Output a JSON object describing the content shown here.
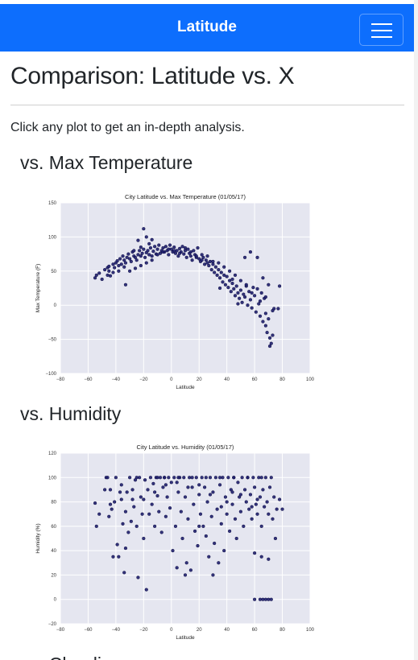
{
  "navbar": {
    "brand": "Latitude",
    "menu_icon": "hamburger-icon",
    "color": "#0d6efd"
  },
  "page": {
    "title": "Comparison: Latitude vs. X",
    "intro": "Click any plot to get an in-depth analysis.",
    "sections": [
      {
        "heading": "vs. Max Temperature"
      },
      {
        "heading": "vs. Humidity"
      },
      {
        "heading": "vs. Cloudiness"
      }
    ]
  },
  "chart_data": [
    {
      "type": "scatter",
      "title": "City Latitude vs. Max Temperature (01/05/17)",
      "xlabel": "Latitude",
      "ylabel": "Max Temperature (F)",
      "xlim": [
        -80,
        100
      ],
      "ylim": [
        -100,
        150
      ],
      "xticks": [
        -80,
        -60,
        -40,
        -20,
        0,
        20,
        40,
        60,
        80,
        100
      ],
      "yticks": [
        -100,
        -50,
        0,
        50,
        100,
        150
      ],
      "background": "#e5e6f0",
      "marker_color": "#1f1f6e",
      "grid": true,
      "points": [
        [
          -55,
          40
        ],
        [
          -54,
          44
        ],
        [
          -52,
          47
        ],
        [
          -48,
          52
        ],
        [
          -46,
          55
        ],
        [
          -45,
          57
        ],
        [
          -45,
          50
        ],
        [
          -44,
          43
        ],
        [
          -42,
          60
        ],
        [
          -41,
          55
        ],
        [
          -40,
          62
        ],
        [
          -39,
          65
        ],
        [
          -38,
          58
        ],
        [
          -37,
          68
        ],
        [
          -36,
          60
        ],
        [
          -35,
          72
        ],
        [
          -34,
          66
        ],
        [
          -33,
          62
        ],
        [
          -33,
          30
        ],
        [
          -32,
          70
        ],
        [
          -31,
          75
        ],
        [
          -30,
          68
        ],
        [
          -29,
          64
        ],
        [
          -28,
          78
        ],
        [
          -27,
          72
        ],
        [
          -27,
          80
        ],
        [
          -26,
          70
        ],
        [
          -25,
          66
        ],
        [
          -24,
          74
        ],
        [
          -24,
          95
        ],
        [
          -23,
          80
        ],
        [
          -22,
          72
        ],
        [
          -22,
          85
        ],
        [
          -21,
          76
        ],
        [
          -20,
          82
        ],
        [
          -20,
          112
        ],
        [
          -19,
          70
        ],
        [
          -18,
          77
        ],
        [
          -18,
          100
        ],
        [
          -17,
          80
        ],
        [
          -16,
          74
        ],
        [
          -16,
          90
        ],
        [
          -15,
          84
        ],
        [
          -14,
          72
        ],
        [
          -14,
          96
        ],
        [
          -13,
          79
        ],
        [
          -12,
          86
        ],
        [
          -11,
          75
        ],
        [
          -10,
          82
        ],
        [
          -9,
          88
        ],
        [
          -8,
          76
        ],
        [
          -7,
          80
        ],
        [
          -6,
          84
        ],
        [
          -5,
          78
        ],
        [
          -4,
          86
        ],
        [
          -3,
          80
        ],
        [
          -2,
          74
        ],
        [
          -1,
          88
        ],
        [
          0,
          82
        ],
        [
          1,
          78
        ],
        [
          2,
          85
        ],
        [
          3,
          76
        ],
        [
          4,
          80
        ],
        [
          5,
          72
        ],
        [
          6,
          83
        ],
        [
          7,
          78
        ],
        [
          8,
          86
        ],
        [
          9,
          75
        ],
        [
          10,
          80
        ],
        [
          11,
          70
        ],
        [
          12,
          82
        ],
        [
          13,
          76
        ],
        [
          14,
          72
        ],
        [
          15,
          66
        ],
        [
          16,
          80
        ],
        [
          17,
          74
        ],
        [
          18,
          70
        ],
        [
          19,
          84
        ],
        [
          20,
          68
        ],
        [
          21,
          64
        ],
        [
          22,
          74
        ],
        [
          23,
          70
        ],
        [
          24,
          60
        ],
        [
          25,
          66
        ],
        [
          26,
          72
        ],
        [
          27,
          58
        ],
        [
          28,
          64
        ],
        [
          29,
          52
        ],
        [
          30,
          60
        ],
        [
          31,
          48
        ],
        [
          32,
          56
        ],
        [
          33,
          44
        ],
        [
          34,
          52
        ],
        [
          35,
          40
        ],
        [
          36,
          48
        ],
        [
          37,
          34
        ],
        [
          38,
          44
        ],
        [
          39,
          30
        ],
        [
          40,
          42
        ],
        [
          41,
          26
        ],
        [
          42,
          36
        ],
        [
          43,
          20
        ],
        [
          44,
          32
        ],
        [
          45,
          24
        ],
        [
          46,
          14
        ],
        [
          47,
          28
        ],
        [
          48,
          18
        ],
        [
          49,
          10
        ],
        [
          50,
          22
        ],
        [
          51,
          4
        ],
        [
          52,
          16
        ],
        [
          53,
          12
        ],
        [
          54,
          28
        ],
        [
          55,
          0
        ],
        [
          56,
          20
        ],
        [
          57,
          8
        ],
        [
          58,
          -4
        ],
        [
          59,
          26
        ],
        [
          60,
          14
        ],
        [
          61,
          -10
        ],
        [
          62,
          24
        ],
        [
          63,
          2
        ],
        [
          64,
          -16
        ],
        [
          65,
          18
        ],
        [
          66,
          -24
        ],
        [
          67,
          10
        ],
        [
          68,
          -30
        ],
        [
          69,
          -40
        ],
        [
          70,
          -20
        ],
        [
          71,
          -48
        ],
        [
          72,
          -56
        ],
        [
          73,
          -8
        ],
        [
          68,
          -12
        ],
        [
          64,
          6
        ],
        [
          58,
          18
        ],
        [
          54,
          30
        ],
        [
          50,
          36
        ],
        [
          46,
          44
        ],
        [
          42,
          50
        ],
        [
          38,
          56
        ],
        [
          34,
          62
        ],
        [
          30,
          64
        ],
        [
          26,
          62
        ],
        [
          22,
          66
        ],
        [
          18,
          72
        ],
        [
          14,
          78
        ],
        [
          10,
          84
        ],
        [
          6,
          76
        ],
        [
          2,
          80
        ],
        [
          -2,
          82
        ],
        [
          -6,
          78
        ],
        [
          -10,
          74
        ],
        [
          -14,
          66
        ],
        [
          -18,
          62
        ],
        [
          -22,
          58
        ],
        [
          -26,
          54
        ],
        [
          -30,
          50
        ],
        [
          -34,
          56
        ],
        [
          -38,
          50
        ],
        [
          -42,
          48
        ],
        [
          -46,
          44
        ],
        [
          -50,
          38
        ],
        [
          53,
          70
        ],
        [
          57,
          78
        ],
        [
          62,
          70
        ],
        [
          70,
          30
        ],
        [
          74,
          -5
        ],
        [
          78,
          28
        ],
        [
          77,
          -5
        ],
        [
          35,
          25
        ],
        [
          48,
          2
        ],
        [
          44,
          38
        ],
        [
          66,
          40
        ],
        [
          68,
          12
        ],
        [
          71,
          -60
        ],
        [
          73,
          -44
        ]
      ]
    },
    {
      "type": "scatter",
      "title": "City Latitude vs. Humidity (01/05/17)",
      "xlabel": "Latitude",
      "ylabel": "Humidity (%)",
      "xlim": [
        -80,
        100
      ],
      "ylim": [
        -20,
        120
      ],
      "xticks": [
        -80,
        -60,
        -40,
        -20,
        0,
        20,
        40,
        60,
        80,
        100
      ],
      "yticks": [
        -20,
        0,
        20,
        40,
        60,
        80,
        100,
        120
      ],
      "background": "#e5e6f0",
      "marker_color": "#1f1f6e",
      "grid": true,
      "points": [
        [
          -55,
          79
        ],
        [
          -54,
          60
        ],
        [
          -52,
          70
        ],
        [
          -48,
          90
        ],
        [
          -47,
          100
        ],
        [
          -46,
          100
        ],
        [
          -45,
          68
        ],
        [
          -44,
          90
        ],
        [
          -43,
          74
        ],
        [
          -42,
          35
        ],
        [
          -41,
          80
        ],
        [
          -40,
          100
        ],
        [
          -39,
          45
        ],
        [
          -38,
          35
        ],
        [
          -37,
          88
        ],
        [
          -36,
          94
        ],
        [
          -35,
          62
        ],
        [
          -34,
          22
        ],
        [
          -33,
          42
        ],
        [
          -33,
          72
        ],
        [
          -32,
          88
        ],
        [
          -31,
          55
        ],
        [
          -30,
          100
        ],
        [
          -29,
          64
        ],
        [
          -28,
          82
        ],
        [
          -27,
          76
        ],
        [
          -26,
          98
        ],
        [
          -25,
          60
        ],
        [
          -24,
          18
        ],
        [
          -23,
          100
        ],
        [
          -22,
          84
        ],
        [
          -21,
          70
        ],
        [
          -20,
          50
        ],
        [
          -19,
          98
        ],
        [
          -18,
          8
        ],
        [
          -17,
          90
        ],
        [
          -16,
          70
        ],
        [
          -15,
          100
        ],
        [
          -14,
          78
        ],
        [
          -13,
          95
        ],
        [
          -12,
          60
        ],
        [
          -11,
          100
        ],
        [
          -10,
          85
        ],
        [
          -9,
          72
        ],
        [
          -8,
          100
        ],
        [
          -7,
          55
        ],
        [
          -6,
          92
        ],
        [
          -5,
          100
        ],
        [
          -4,
          68
        ],
        [
          -3,
          84
        ],
        [
          -2,
          100
        ],
        [
          -1,
          75
        ],
        [
          0,
          96
        ],
        [
          1,
          40
        ],
        [
          2,
          100
        ],
        [
          3,
          60
        ],
        [
          4,
          26
        ],
        [
          5,
          88
        ],
        [
          6,
          100
        ],
        [
          7,
          72
        ],
        [
          8,
          50
        ],
        [
          9,
          100
        ],
        [
          10,
          84
        ],
        [
          11,
          30
        ],
        [
          12,
          66
        ],
        [
          13,
          100
        ],
        [
          14,
          24
        ],
        [
          15,
          92
        ],
        [
          16,
          78
        ],
        [
          17,
          56
        ],
        [
          18,
          100
        ],
        [
          19,
          44
        ],
        [
          20,
          86
        ],
        [
          21,
          70
        ],
        [
          22,
          100
        ],
        [
          23,
          60
        ],
        [
          24,
          92
        ],
        [
          25,
          52
        ],
        [
          26,
          80
        ],
        [
          27,
          35
        ],
        [
          28,
          100
        ],
        [
          29,
          68
        ],
        [
          30,
          88
        ],
        [
          31,
          46
        ],
        [
          32,
          100
        ],
        [
          33,
          74
        ],
        [
          34,
          30
        ],
        [
          35,
          94
        ],
        [
          36,
          62
        ],
        [
          37,
          100
        ],
        [
          38,
          40
        ],
        [
          39,
          84
        ],
        [
          40,
          70
        ],
        [
          41,
          100
        ],
        [
          42,
          56
        ],
        [
          43,
          90
        ],
        [
          44,
          78
        ],
        [
          45,
          100
        ],
        [
          46,
          66
        ],
        [
          47,
          50
        ],
        [
          48,
          96
        ],
        [
          49,
          84
        ],
        [
          50,
          72
        ],
        [
          51,
          100
        ],
        [
          52,
          60
        ],
        [
          53,
          90
        ],
        [
          54,
          80
        ],
        [
          55,
          100
        ],
        [
          56,
          74
        ],
        [
          57,
          86
        ],
        [
          58,
          66
        ],
        [
          59,
          100
        ],
        [
          60,
          92
        ],
        [
          61,
          78
        ],
        [
          62,
          70
        ],
        [
          63,
          100
        ],
        [
          64,
          84
        ],
        [
          65,
          60
        ],
        [
          66,
          90
        ],
        [
          67,
          76
        ],
        [
          68,
          100
        ],
        [
          69,
          80
        ],
        [
          70,
          70
        ],
        [
          71,
          92
        ],
        [
          72,
          100
        ],
        [
          73,
          66
        ],
        [
          74,
          84
        ],
        [
          75,
          50
        ],
        [
          60,
          0
        ],
        [
          64,
          0
        ],
        [
          66,
          0
        ],
        [
          68,
          0
        ],
        [
          70,
          0
        ],
        [
          72,
          0
        ],
        [
          60,
          38
        ],
        [
          65,
          35
        ],
        [
          70,
          33
        ],
        [
          -10,
          100
        ],
        [
          -25,
          100
        ],
        [
          -5,
          100
        ],
        [
          5,
          100
        ],
        [
          15,
          100
        ],
        [
          25,
          100
        ],
        [
          35,
          100
        ],
        [
          45,
          100
        ],
        [
          55,
          100
        ],
        [
          65,
          100
        ],
        [
          20,
          60
        ],
        [
          30,
          20
        ],
        [
          10,
          20
        ],
        [
          40,
          80
        ],
        [
          50,
          86
        ],
        [
          58,
          76
        ],
        [
          62,
          82
        ],
        [
          44,
          88
        ],
        [
          36,
          76
        ],
        [
          28,
          86
        ],
        [
          20,
          94
        ],
        [
          12,
          92
        ],
        [
          4,
          96
        ],
        [
          -4,
          94
        ],
        [
          -12,
          88
        ],
        [
          -20,
          82
        ],
        [
          -28,
          90
        ],
        [
          -36,
          82
        ],
        [
          -44,
          78
        ],
        [
          76,
          74
        ],
        [
          78,
          82
        ],
        [
          80,
          74
        ]
      ]
    }
  ]
}
